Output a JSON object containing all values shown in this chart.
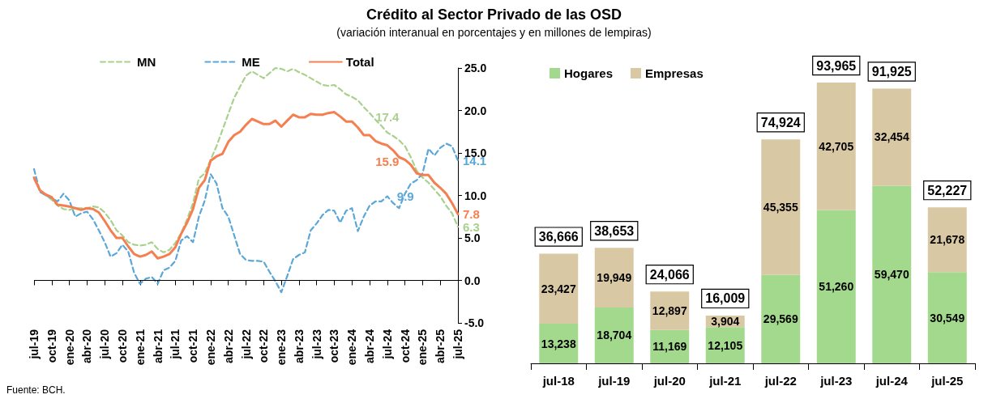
{
  "chart_data": [
    {
      "type": "line",
      "title": "Crédito al Sector Privado de las OSD",
      "subtitle": "(variación interanual en porcentajes y en millones de lempiras)",
      "annotations": [
        "Fuente: BCH."
      ],
      "categories": [
        "jul-19",
        null,
        null,
        "oct-19",
        null,
        null,
        "ene-20",
        null,
        null,
        "abr-20",
        null,
        null,
        "jul-20",
        null,
        null,
        "oct-20",
        null,
        null,
        "ene-21",
        null,
        null,
        "abr-21",
        null,
        null,
        "jul-21",
        null,
        null,
        "oct-21",
        null,
        null,
        "ene-22",
        null,
        null,
        "abr-22",
        null,
        null,
        "jul-22",
        null,
        null,
        "oct-22",
        null,
        null,
        "ene-23",
        null,
        null,
        "abr-23",
        null,
        null,
        "jul-23",
        null,
        null,
        "oct-23",
        null,
        null,
        "ene-24",
        null,
        null,
        "abr-24",
        null,
        null,
        "jul-24",
        null,
        null,
        "oct-24",
        null,
        null,
        "ene-25",
        null,
        null,
        "abr-25",
        null,
        null,
        "jul-25"
      ],
      "series": [
        {
          "name": "MN",
          "color": "#a9d18e",
          "line_style": "dashed",
          "values": [
            11.9,
            10.6,
            10.0,
            9.5,
            8.8,
            8.4,
            8.3,
            8.5,
            8.5,
            8.5,
            8.7,
            8.6,
            8.0,
            7.1,
            5.9,
            5.3,
            4.5,
            4.2,
            4.1,
            4.2,
            4.5,
            3.7,
            3.3,
            3.6,
            4.4,
            5.6,
            7.2,
            9.1,
            12.0,
            12.6,
            14.2,
            15.8,
            17.7,
            19.6,
            21.5,
            22.8,
            24.1,
            24.6,
            24.2,
            23.8,
            24.4,
            25.0,
            24.9,
            24.6,
            24.9,
            24.5,
            24.2,
            23.8,
            23.4,
            23.0,
            22.9,
            23.0,
            22.5,
            21.9,
            21.6,
            21.2,
            20.4,
            19.7,
            18.9,
            18.2,
            17.4,
            17.0,
            16.5,
            15.8,
            14.5,
            12.9,
            12.1,
            11.5,
            10.7,
            9.9,
            8.8,
            7.9,
            6.3
          ],
          "value_labels": [
            null,
            null,
            null,
            null,
            null,
            null,
            null,
            null,
            null,
            null,
            null,
            null,
            null,
            null,
            null,
            null,
            null,
            null,
            null,
            null,
            null,
            null,
            null,
            null,
            null,
            null,
            null,
            null,
            null,
            null,
            null,
            null,
            null,
            null,
            null,
            null,
            null,
            null,
            null,
            null,
            null,
            null,
            null,
            null,
            null,
            null,
            null,
            null,
            null,
            null,
            null,
            null,
            null,
            null,
            null,
            null,
            null,
            null,
            null,
            null,
            "17.4",
            null,
            null,
            null,
            null,
            null,
            null,
            null,
            null,
            null,
            null,
            null,
            "6.3"
          ]
        },
        {
          "name": "ME",
          "color": "#5ba7d8",
          "line_style": "dashed",
          "values": [
            13.1,
            10.4,
            10.0,
            9.7,
            9.3,
            10.2,
            9.4,
            7.5,
            7.9,
            8.1,
            7.2,
            5.9,
            4.5,
            2.8,
            3.2,
            4.2,
            3.4,
            0.9,
            -0.4,
            0.2,
            0.4,
            -0.4,
            1.2,
            1.5,
            2.3,
            4.7,
            5.2,
            4.5,
            7.5,
            9.4,
            12.5,
            11.4,
            8.5,
            7.5,
            5.3,
            3.1,
            2.4,
            2.3,
            2.3,
            2.2,
            1.0,
            -0.1,
            -1.4,
            0.5,
            2.5,
            3.0,
            3.3,
            5.9,
            6.7,
            7.7,
            8.3,
            8.2,
            6.8,
            8.2,
            8.5,
            5.8,
            7.5,
            8.8,
            9.3,
            9.3,
            9.9,
            9.1,
            8.5,
            10.2,
            11.4,
            11.8,
            12.6,
            15.5,
            14.7,
            15.6,
            16.1,
            15.8,
            14.1
          ],
          "value_labels": [
            null,
            null,
            null,
            null,
            null,
            null,
            null,
            null,
            null,
            null,
            null,
            null,
            null,
            null,
            null,
            null,
            null,
            null,
            null,
            null,
            null,
            null,
            null,
            null,
            null,
            null,
            null,
            null,
            null,
            null,
            null,
            null,
            null,
            null,
            null,
            null,
            null,
            null,
            null,
            null,
            null,
            null,
            null,
            null,
            null,
            null,
            null,
            null,
            null,
            null,
            null,
            null,
            null,
            null,
            null,
            null,
            null,
            null,
            null,
            null,
            "9.9",
            null,
            null,
            null,
            null,
            null,
            null,
            null,
            null,
            null,
            null,
            null,
            "14.1"
          ]
        },
        {
          "name": "Total",
          "color": "#f47f50",
          "line_style": "solid",
          "values": [
            12.1,
            10.6,
            10.1,
            9.8,
            8.9,
            8.8,
            8.7,
            8.5,
            8.3,
            8.5,
            8.4,
            8.0,
            7.0,
            5.9,
            5.0,
            5.0,
            4.0,
            3.1,
            2.8,
            3.0,
            3.4,
            2.6,
            2.8,
            3.1,
            3.9,
            5.5,
            6.8,
            8.4,
            10.9,
            11.8,
            14.1,
            14.6,
            14.9,
            16.3,
            17.1,
            17.5,
            18.3,
            19.0,
            18.7,
            18.4,
            18.4,
            18.8,
            18.1,
            18.8,
            19.5,
            19.2,
            19.2,
            19.6,
            19.5,
            19.5,
            19.7,
            19.8,
            19.3,
            18.7,
            18.7,
            18.0,
            17.1,
            17.1,
            16.4,
            16.1,
            15.9,
            15.3,
            14.5,
            14.2,
            13.6,
            12.6,
            12.4,
            12.4,
            11.5,
            10.9,
            10.2,
            9.1,
            7.8
          ],
          "value_labels": [
            null,
            null,
            null,
            null,
            null,
            null,
            null,
            null,
            null,
            null,
            null,
            null,
            null,
            null,
            null,
            null,
            null,
            null,
            null,
            null,
            null,
            null,
            null,
            null,
            null,
            null,
            null,
            null,
            null,
            null,
            null,
            null,
            null,
            null,
            null,
            null,
            null,
            null,
            null,
            null,
            null,
            null,
            null,
            null,
            null,
            null,
            null,
            null,
            null,
            null,
            null,
            null,
            null,
            null,
            null,
            null,
            null,
            null,
            null,
            null,
            "15.9",
            null,
            null,
            null,
            null,
            null,
            null,
            null,
            null,
            null,
            null,
            null,
            "7.8"
          ]
        }
      ],
      "ylim": [
        -5,
        25
      ],
      "yticks": [
        {
          "value": -5,
          "label": "-5.0"
        },
        {
          "value": 0,
          "label": "0.0"
        },
        {
          "value": 5,
          "label": "5.0"
        },
        {
          "value": 10,
          "label": "10.0"
        },
        {
          "value": 15,
          "label": "15.0"
        },
        {
          "value": 20,
          "label": "20.0"
        },
        {
          "value": 25,
          "label": "25.0"
        }
      ],
      "ref_lines": [
        {
          "axis": "y",
          "value": 0,
          "color": "#000000"
        }
      ],
      "grid": false,
      "legend": "top"
    },
    {
      "type": "bar",
      "stacked": true,
      "legend": "top left",
      "grid": false,
      "categories": [
        "jul-18",
        "jul-19",
        "jul-20",
        "jul-21",
        "jul-22",
        "jul-23",
        "jul-24",
        "jul-25"
      ],
      "series": [
        {
          "name": "Hogares",
          "color": "#a3d98d",
          "values": [
            13238,
            18704,
            11169,
            12105,
            29569,
            51260,
            59470,
            30549
          ],
          "value_labels": [
            "13,238",
            "18,704",
            "11,169",
            "12,105",
            "29,569",
            "51,260",
            "59,470",
            "30,549"
          ]
        },
        {
          "name": "Empresas",
          "color": "#d9c8a4",
          "values": [
            23427,
            19949,
            12897,
            3904,
            45355,
            42705,
            32454,
            21678
          ],
          "value_labels": [
            "23,427",
            "19,949",
            "12,897",
            "3,904",
            "45,355",
            "42,705",
            "32,454",
            "21,678"
          ]
        }
      ],
      "totals": [
        "36,666",
        "38,653",
        "24,066",
        "16,009",
        "74,924",
        "93,965",
        "91,925",
        "52,227"
      ]
    }
  ]
}
